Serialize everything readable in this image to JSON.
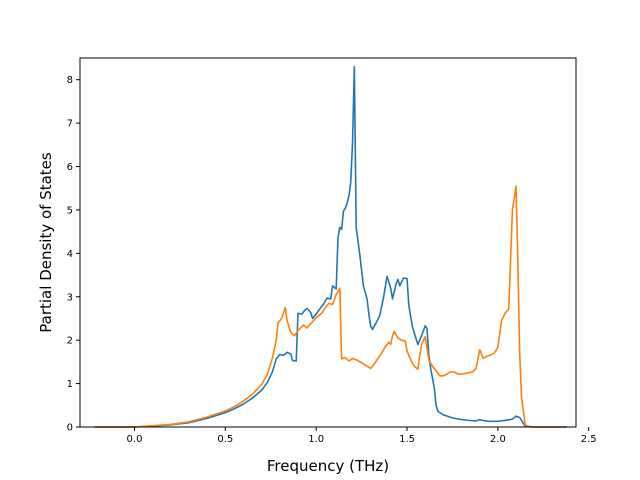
{
  "chart_data": {
    "type": "line",
    "title": "",
    "xlabel": "Frequency (THz)",
    "ylabel": "Partial Density of States",
    "xlim": [
      -0.3,
      2.43
    ],
    "ylim": [
      0,
      8.5
    ],
    "xticks": [
      {
        "value": 0.0,
        "label": "0.0"
      },
      {
        "value": 0.5,
        "label": "0.5"
      },
      {
        "value": 1.0,
        "label": "1.0"
      },
      {
        "value": 1.5,
        "label": "1.5"
      },
      {
        "value": 2.0,
        "label": "2.0"
      },
      {
        "value": 2.5,
        "label": "2.5"
      }
    ],
    "yticks": [
      {
        "value": 0,
        "label": "0"
      },
      {
        "value": 1,
        "label": "1"
      },
      {
        "value": 2,
        "label": "2"
      },
      {
        "value": 3,
        "label": "3"
      },
      {
        "value": 4,
        "label": "4"
      },
      {
        "value": 5,
        "label": "5"
      },
      {
        "value": 6,
        "label": "6"
      },
      {
        "value": 7,
        "label": "7"
      },
      {
        "value": 8,
        "label": "8"
      }
    ],
    "grid": false,
    "legend": "none",
    "series": [
      {
        "color": "#1f77b4",
        "points": [
          [
            -0.22,
            0.0
          ],
          [
            0.0,
            0.0
          ],
          [
            0.1,
            0.02
          ],
          [
            0.2,
            0.05
          ],
          [
            0.3,
            0.1
          ],
          [
            0.4,
            0.2
          ],
          [
            0.5,
            0.33
          ],
          [
            0.55,
            0.42
          ],
          [
            0.6,
            0.53
          ],
          [
            0.65,
            0.67
          ],
          [
            0.7,
            0.85
          ],
          [
            0.73,
            1.02
          ],
          [
            0.76,
            1.28
          ],
          [
            0.78,
            1.57
          ],
          [
            0.8,
            1.67
          ],
          [
            0.82,
            1.65
          ],
          [
            0.84,
            1.72
          ],
          [
            0.86,
            1.68
          ],
          [
            0.87,
            1.53
          ],
          [
            0.89,
            1.52
          ],
          [
            0.9,
            2.62
          ],
          [
            0.92,
            2.6
          ],
          [
            0.94,
            2.7
          ],
          [
            0.95,
            2.73
          ],
          [
            0.97,
            2.64
          ],
          [
            0.98,
            2.5
          ],
          [
            1.0,
            2.6
          ],
          [
            1.02,
            2.72
          ],
          [
            1.04,
            2.83
          ],
          [
            1.06,
            2.97
          ],
          [
            1.08,
            2.95
          ],
          [
            1.09,
            3.25
          ],
          [
            1.11,
            3.18
          ],
          [
            1.12,
            4.35
          ],
          [
            1.13,
            4.6
          ],
          [
            1.14,
            4.55
          ],
          [
            1.15,
            4.97
          ],
          [
            1.16,
            5.04
          ],
          [
            1.17,
            5.15
          ],
          [
            1.18,
            5.32
          ],
          [
            1.19,
            5.63
          ],
          [
            1.2,
            6.55
          ],
          [
            1.21,
            8.3
          ],
          [
            1.22,
            4.6
          ],
          [
            1.24,
            3.97
          ],
          [
            1.26,
            3.25
          ],
          [
            1.28,
            2.95
          ],
          [
            1.29,
            2.6
          ],
          [
            1.3,
            2.32
          ],
          [
            1.31,
            2.25
          ],
          [
            1.33,
            2.4
          ],
          [
            1.35,
            2.57
          ],
          [
            1.37,
            2.97
          ],
          [
            1.39,
            3.47
          ],
          [
            1.41,
            3.2
          ],
          [
            1.42,
            2.95
          ],
          [
            1.44,
            3.3
          ],
          [
            1.45,
            3.4
          ],
          [
            1.46,
            3.25
          ],
          [
            1.48,
            3.43
          ],
          [
            1.5,
            3.42
          ],
          [
            1.51,
            2.8
          ],
          [
            1.53,
            2.3
          ],
          [
            1.55,
            2.03
          ],
          [
            1.56,
            1.9
          ],
          [
            1.58,
            2.1
          ],
          [
            1.6,
            2.33
          ],
          [
            1.61,
            2.27
          ],
          [
            1.62,
            1.65
          ],
          [
            1.63,
            1.35
          ],
          [
            1.65,
            0.9
          ],
          [
            1.66,
            0.5
          ],
          [
            1.67,
            0.36
          ],
          [
            1.7,
            0.28
          ],
          [
            1.75,
            0.21
          ],
          [
            1.8,
            0.17
          ],
          [
            1.85,
            0.15
          ],
          [
            1.88,
            0.14
          ],
          [
            1.9,
            0.17
          ],
          [
            1.92,
            0.15
          ],
          [
            1.95,
            0.13
          ],
          [
            2.0,
            0.13
          ],
          [
            2.05,
            0.16
          ],
          [
            2.08,
            0.18
          ],
          [
            2.1,
            0.25
          ],
          [
            2.12,
            0.22
          ],
          [
            2.15,
            0.02
          ],
          [
            2.2,
            0.0
          ],
          [
            2.38,
            0.0
          ]
        ]
      },
      {
        "color": "#ff7f0e",
        "points": [
          [
            -0.22,
            0.0
          ],
          [
            0.0,
            0.0
          ],
          [
            0.1,
            0.03
          ],
          [
            0.2,
            0.06
          ],
          [
            0.3,
            0.12
          ],
          [
            0.4,
            0.23
          ],
          [
            0.5,
            0.37
          ],
          [
            0.55,
            0.47
          ],
          [
            0.6,
            0.6
          ],
          [
            0.65,
            0.76
          ],
          [
            0.7,
            0.98
          ],
          [
            0.73,
            1.2
          ],
          [
            0.76,
            1.6
          ],
          [
            0.78,
            2.0
          ],
          [
            0.79,
            2.4
          ],
          [
            0.81,
            2.5
          ],
          [
            0.83,
            2.75
          ],
          [
            0.84,
            2.45
          ],
          [
            0.86,
            2.18
          ],
          [
            0.88,
            2.1
          ],
          [
            0.9,
            2.22
          ],
          [
            0.93,
            2.35
          ],
          [
            0.95,
            2.28
          ],
          [
            0.97,
            2.38
          ],
          [
            1.0,
            2.52
          ],
          [
            1.03,
            2.62
          ],
          [
            1.05,
            2.75
          ],
          [
            1.07,
            2.85
          ],
          [
            1.09,
            2.82
          ],
          [
            1.11,
            3.05
          ],
          [
            1.13,
            3.2
          ],
          [
            1.14,
            1.57
          ],
          [
            1.16,
            1.6
          ],
          [
            1.18,
            1.52
          ],
          [
            1.2,
            1.58
          ],
          [
            1.22,
            1.55
          ],
          [
            1.25,
            1.48
          ],
          [
            1.28,
            1.4
          ],
          [
            1.3,
            1.35
          ],
          [
            1.32,
            1.45
          ],
          [
            1.34,
            1.58
          ],
          [
            1.36,
            1.7
          ],
          [
            1.38,
            1.85
          ],
          [
            1.4,
            1.95
          ],
          [
            1.41,
            1.9
          ],
          [
            1.42,
            2.1
          ],
          [
            1.43,
            2.2
          ],
          [
            1.45,
            2.05
          ],
          [
            1.47,
            2.0
          ],
          [
            1.49,
            1.98
          ],
          [
            1.5,
            1.75
          ],
          [
            1.52,
            1.55
          ],
          [
            1.54,
            1.4
          ],
          [
            1.56,
            1.33
          ],
          [
            1.57,
            1.65
          ],
          [
            1.58,
            1.9
          ],
          [
            1.6,
            2.08
          ],
          [
            1.62,
            1.55
          ],
          [
            1.64,
            1.4
          ],
          [
            1.66,
            1.3
          ],
          [
            1.68,
            1.18
          ],
          [
            1.7,
            1.18
          ],
          [
            1.72,
            1.22
          ],
          [
            1.74,
            1.27
          ],
          [
            1.76,
            1.27
          ],
          [
            1.78,
            1.22
          ],
          [
            1.8,
            1.22
          ],
          [
            1.83,
            1.24
          ],
          [
            1.86,
            1.27
          ],
          [
            1.88,
            1.35
          ],
          [
            1.9,
            1.78
          ],
          [
            1.92,
            1.58
          ],
          [
            1.94,
            1.63
          ],
          [
            1.96,
            1.66
          ],
          [
            1.98,
            1.7
          ],
          [
            2.0,
            1.83
          ],
          [
            2.02,
            2.45
          ],
          [
            2.04,
            2.62
          ],
          [
            2.06,
            2.72
          ],
          [
            2.08,
            5.0
          ],
          [
            2.1,
            5.55
          ],
          [
            2.11,
            3.8
          ],
          [
            2.12,
            1.7
          ],
          [
            2.13,
            0.7
          ],
          [
            2.15,
            0.05
          ],
          [
            2.18,
            0.0
          ],
          [
            2.38,
            0.0
          ]
        ]
      }
    ]
  }
}
